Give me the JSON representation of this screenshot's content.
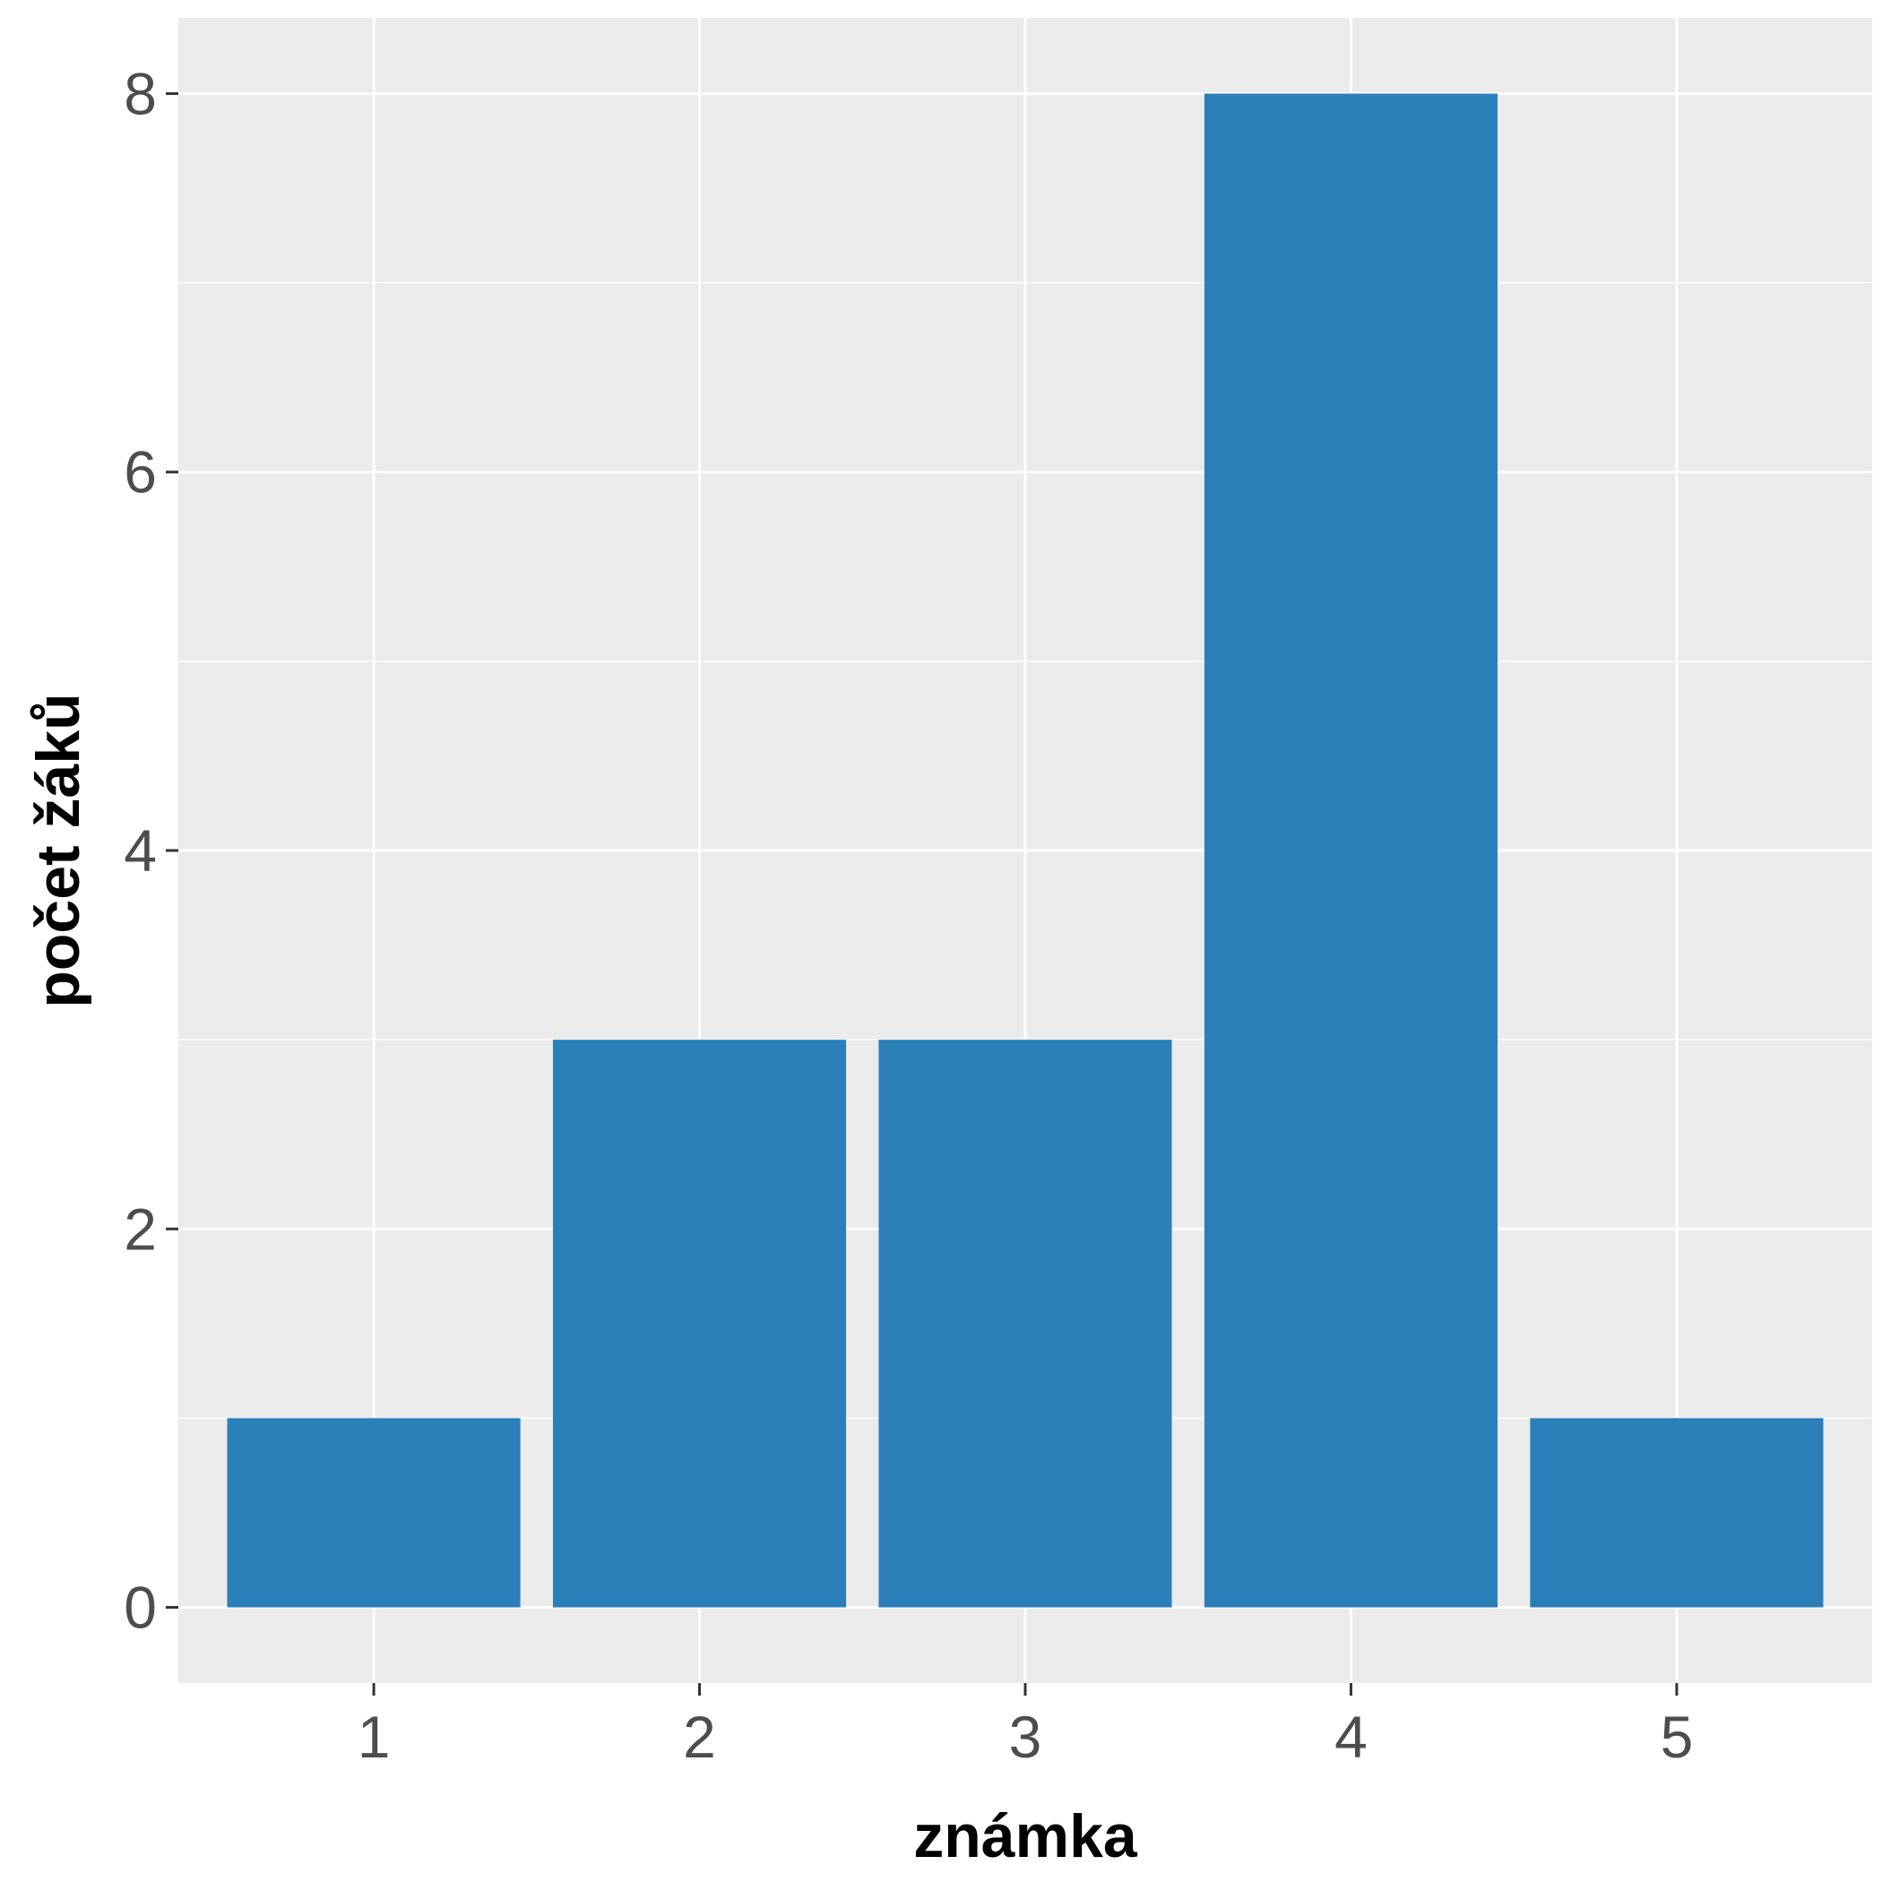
{
  "chart_data": {
    "type": "bar",
    "categories": [
      "1",
      "2",
      "3",
      "4",
      "5"
    ],
    "values": [
      1,
      3,
      3,
      8,
      1
    ],
    "xlabel": "známka",
    "ylabel": "počet žáků",
    "ylim": [
      -0.4,
      8.4
    ],
    "yticks": [
      0,
      2,
      4,
      6,
      8
    ],
    "grid": true,
    "legend": "none",
    "colors": {
      "bar": "#2b7fb8",
      "panel": "#ebebeb",
      "grid": "#ffffff",
      "tick_text": "#4d4d4d",
      "tick_mark": "#333333",
      "title_text": "#000000"
    }
  }
}
